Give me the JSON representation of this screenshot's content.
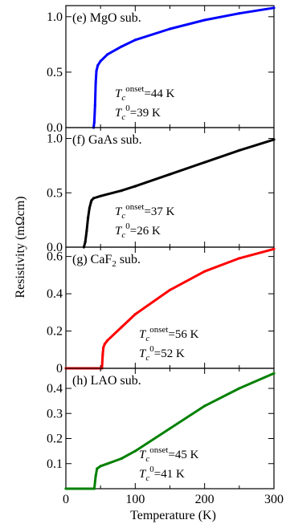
{
  "chart_data": [
    {
      "type": "line",
      "panel_label": "(e) MgO sub.",
      "xlabel": "Temperature (K)",
      "ylabel": "Resistivity (mΩcm)",
      "xlim": [
        0,
        300
      ],
      "ylim": [
        0,
        1.1
      ],
      "y_ticks": [
        0.0,
        0.5,
        1.0
      ],
      "y_tick_labels": [
        "0.0",
        "0.5",
        "1.0"
      ],
      "series": [
        {
          "color": "#0000ff",
          "x": [
            40,
            41,
            42,
            43,
            44,
            46,
            50,
            60,
            80,
            100,
            150,
            200,
            250,
            300
          ],
          "y": [
            0.0,
            0.05,
            0.2,
            0.4,
            0.51,
            0.56,
            0.6,
            0.66,
            0.73,
            0.79,
            0.89,
            0.97,
            1.03,
            1.08
          ]
        }
      ],
      "annotation": {
        "line1": {
          "prefix": "T",
          "sub": "c",
          "sup": "onset",
          "value": "=44 K"
        },
        "line2": {
          "prefix": "T",
          "sub": "c",
          "sup": "0",
          "value": "=39 K"
        }
      }
    },
    {
      "type": "line",
      "panel_label": "(f) GaAs sub.",
      "xlim": [
        0,
        300
      ],
      "ylim": [
        0,
        1.1
      ],
      "y_ticks": [
        0.0,
        0.5,
        1.0
      ],
      "y_tick_labels": [
        "0.0",
        "0.5",
        "1.0"
      ],
      "series": [
        {
          "color": "#000000",
          "x": [
            26,
            28,
            30,
            32,
            34,
            36,
            37,
            40,
            50,
            80,
            100,
            150,
            200,
            250,
            300
          ],
          "y": [
            0.0,
            0.05,
            0.15,
            0.27,
            0.36,
            0.41,
            0.43,
            0.45,
            0.47,
            0.52,
            0.56,
            0.67,
            0.78,
            0.89,
            0.99
          ]
        }
      ],
      "annotation": {
        "line1": {
          "prefix": "T",
          "sub": "c",
          "sup": "onset",
          "value": "=37 K"
        },
        "line2": {
          "prefix": "T",
          "sub": "c",
          "sup": "0",
          "value": "=26 K"
        }
      }
    },
    {
      "type": "line",
      "panel_label": "(g) CaF",
      "panel_label_sub": "2",
      "panel_label_suffix": " sub.",
      "xlim": [
        0,
        300
      ],
      "ylim": [
        0,
        0.65
      ],
      "y_ticks": [
        0,
        0.2,
        0.4,
        0.6
      ],
      "y_tick_labels": [
        "0",
        "0.2",
        "0.4",
        "0.6"
      ],
      "series": [
        {
          "color": "#ff0000",
          "x": [
            0,
            52,
            53,
            54,
            56,
            60,
            80,
            100,
            150,
            200,
            250,
            300
          ],
          "y": [
            0.0,
            0.0,
            0.07,
            0.11,
            0.13,
            0.15,
            0.22,
            0.29,
            0.42,
            0.52,
            0.59,
            0.64
          ]
        }
      ],
      "annotation": {
        "line1": {
          "prefix": "T",
          "sub": "c",
          "sup": "onset",
          "value": "=56 K"
        },
        "line2": {
          "prefix": "T",
          "sub": "c",
          "sup": "0",
          "value": "=52 K"
        }
      }
    },
    {
      "type": "line",
      "panel_label": "(h) LAO sub.",
      "xlim": [
        0,
        300
      ],
      "ylim": [
        0,
        0.48
      ],
      "y_ticks": [
        0.1,
        0.2,
        0.3,
        0.4
      ],
      "y_tick_labels": [
        "0.1",
        "0.2",
        "0.3",
        "0.4"
      ],
      "x_ticks": [
        0,
        100,
        200,
        300
      ],
      "x_tick_labels": [
        "0",
        "100",
        "200",
        "300"
      ],
      "series": [
        {
          "color": "#008000",
          "x": [
            0,
            41,
            43,
            45,
            50,
            60,
            80,
            100,
            150,
            200,
            250,
            300
          ],
          "y": [
            0.0,
            0.0,
            0.05,
            0.08,
            0.09,
            0.1,
            0.12,
            0.15,
            0.24,
            0.33,
            0.4,
            0.46
          ]
        }
      ],
      "annotation": {
        "line1": {
          "prefix": "T",
          "sub": "c",
          "sup": "onset",
          "value": "=45 K"
        },
        "line2": {
          "prefix": "T",
          "sub": "c",
          "sup": "0",
          "value": "=41 K"
        }
      }
    }
  ]
}
